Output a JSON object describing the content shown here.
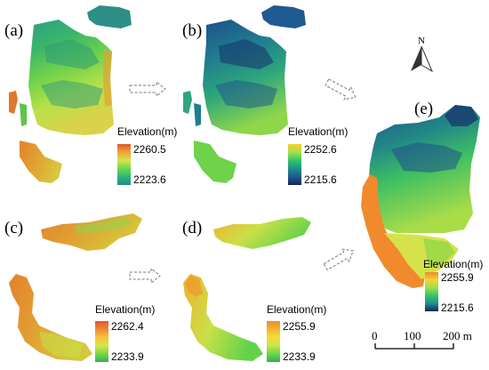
{
  "panels": {
    "a": {
      "label": "(a)",
      "legend_title": "Elevation(m)",
      "max": "2260.5",
      "min": "2223.6",
      "ramp": [
        "#e0572a",
        "#f2a534",
        "#d6e64a",
        "#6bd84a",
        "#2fb47c",
        "#1d8f86"
      ]
    },
    "b": {
      "label": "(b)",
      "legend_title": "Elevation(m)",
      "max": "2252.6",
      "min": "2215.6",
      "ramp": [
        "#f7d02b",
        "#a4e14a",
        "#33c56a",
        "#1f8f8a",
        "#1d5a91",
        "#13265e"
      ]
    },
    "c": {
      "label": "(c)",
      "legend_title": "Elevation(m)",
      "max": "2262.4",
      "min": "2233.9",
      "ramp": [
        "#e0572a",
        "#ee8a35",
        "#f4c43a",
        "#d6e64a",
        "#7ad74a",
        "#2fb05a"
      ]
    },
    "d": {
      "label": "(d)",
      "legend_title": "Elevation(m)",
      "max": "2255.9",
      "min": "2233.9",
      "ramp": [
        "#f08a2c",
        "#f2b430",
        "#f4de3a",
        "#c6e64a",
        "#6ad84a",
        "#2fb05a"
      ]
    },
    "e": {
      "label": "(e)",
      "legend_title": "Elevation(m)",
      "max": "2255.9",
      "min": "2215.6",
      "ramp": [
        "#f08a2c",
        "#f4d43a",
        "#9bde48",
        "#33c56a",
        "#1f8f8a",
        "#13265e"
      ]
    }
  },
  "north_arrow": {
    "letter": "N"
  },
  "scale_bar": {
    "ticks": [
      "0",
      "100",
      "200 m"
    ]
  }
}
